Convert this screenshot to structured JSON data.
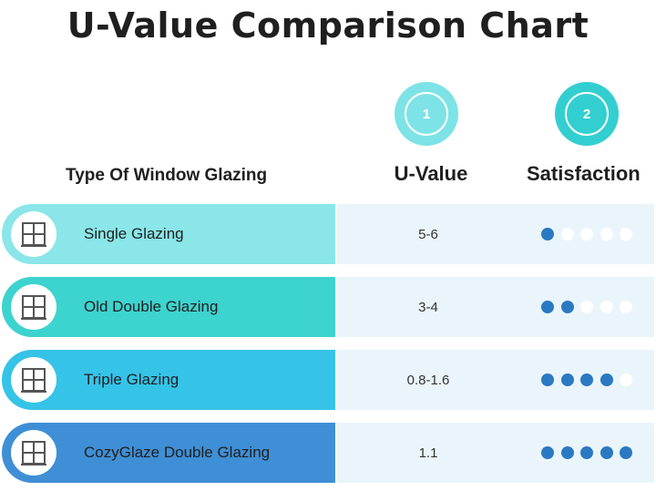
{
  "title": "U-Value Comparison Chart",
  "badges": [
    "1",
    "2"
  ],
  "headers": {
    "type": "Type Of Window Glazing",
    "uvalue": "U-Value",
    "satisfaction": "Satisfaction"
  },
  "colors": {
    "row_1": "#8ae6e8",
    "row_2": "#3dd3cf",
    "row_3": "#35c3e8",
    "row_4": "#3f8fd6",
    "dot_filled": "#2b79c2",
    "row_background": "#eaf5fb"
  },
  "chart_data": {
    "type": "table",
    "title": "U-Value Comparison Chart",
    "columns": [
      "Type Of Window Glazing",
      "U-Value",
      "Satisfaction"
    ],
    "rating_max": 5,
    "rows": [
      {
        "name": "Single Glazing",
        "u_value": "5-6",
        "satisfaction": 1
      },
      {
        "name": "Old Double Glazing",
        "u_value": "3-4",
        "satisfaction": 2
      },
      {
        "name": "Triple Glazing",
        "u_value": "0.8-1.6",
        "satisfaction": 4
      },
      {
        "name": "CozyGlaze Double Glazing",
        "u_value": "1.1",
        "satisfaction": 5
      }
    ]
  }
}
